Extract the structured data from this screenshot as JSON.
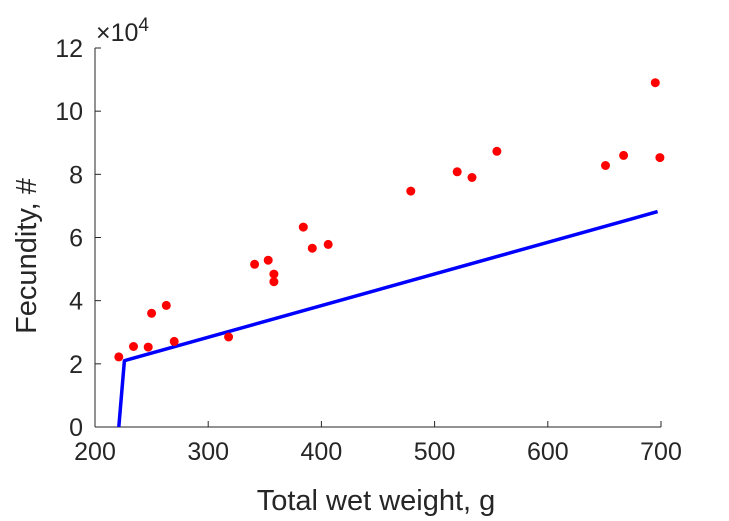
{
  "chart_data": {
    "type": "scatter",
    "xlabel": "Total wet weight, g",
    "ylabel": "Fecundity, #",
    "y_multiplier_base": "×10",
    "y_multiplier_exp": "4",
    "xlim": [
      200,
      700
    ],
    "ylim": [
      0,
      12
    ],
    "x_ticks": [
      200,
      300,
      400,
      500,
      600,
      700
    ],
    "y_ticks": [
      0,
      2,
      4,
      6,
      8,
      10,
      12
    ],
    "grid": false,
    "series": [
      {
        "kind": "scatter",
        "color": "#ff0000",
        "points": [
          [
            221,
            2.22
          ],
          [
            234,
            2.55
          ],
          [
            247,
            2.53
          ],
          [
            250,
            3.6
          ],
          [
            263,
            3.85
          ],
          [
            270,
            2.71
          ],
          [
            318,
            2.85
          ],
          [
            341,
            5.15
          ],
          [
            353,
            5.28
          ],
          [
            358,
            4.84
          ],
          [
            358,
            4.6
          ],
          [
            384,
            6.33
          ],
          [
            392,
            5.66
          ],
          [
            406,
            5.78
          ],
          [
            479,
            7.47
          ],
          [
            520,
            8.08
          ],
          [
            533,
            7.9
          ],
          [
            555,
            8.73
          ],
          [
            651,
            8.28
          ],
          [
            667,
            8.6
          ],
          [
            695,
            10.9
          ],
          [
            699,
            8.53
          ]
        ]
      },
      {
        "kind": "line",
        "color": "#0000ff",
        "points": [
          [
            221,
            0
          ],
          [
            226,
            2.1
          ],
          [
            697,
            6.82
          ]
        ]
      }
    ]
  }
}
